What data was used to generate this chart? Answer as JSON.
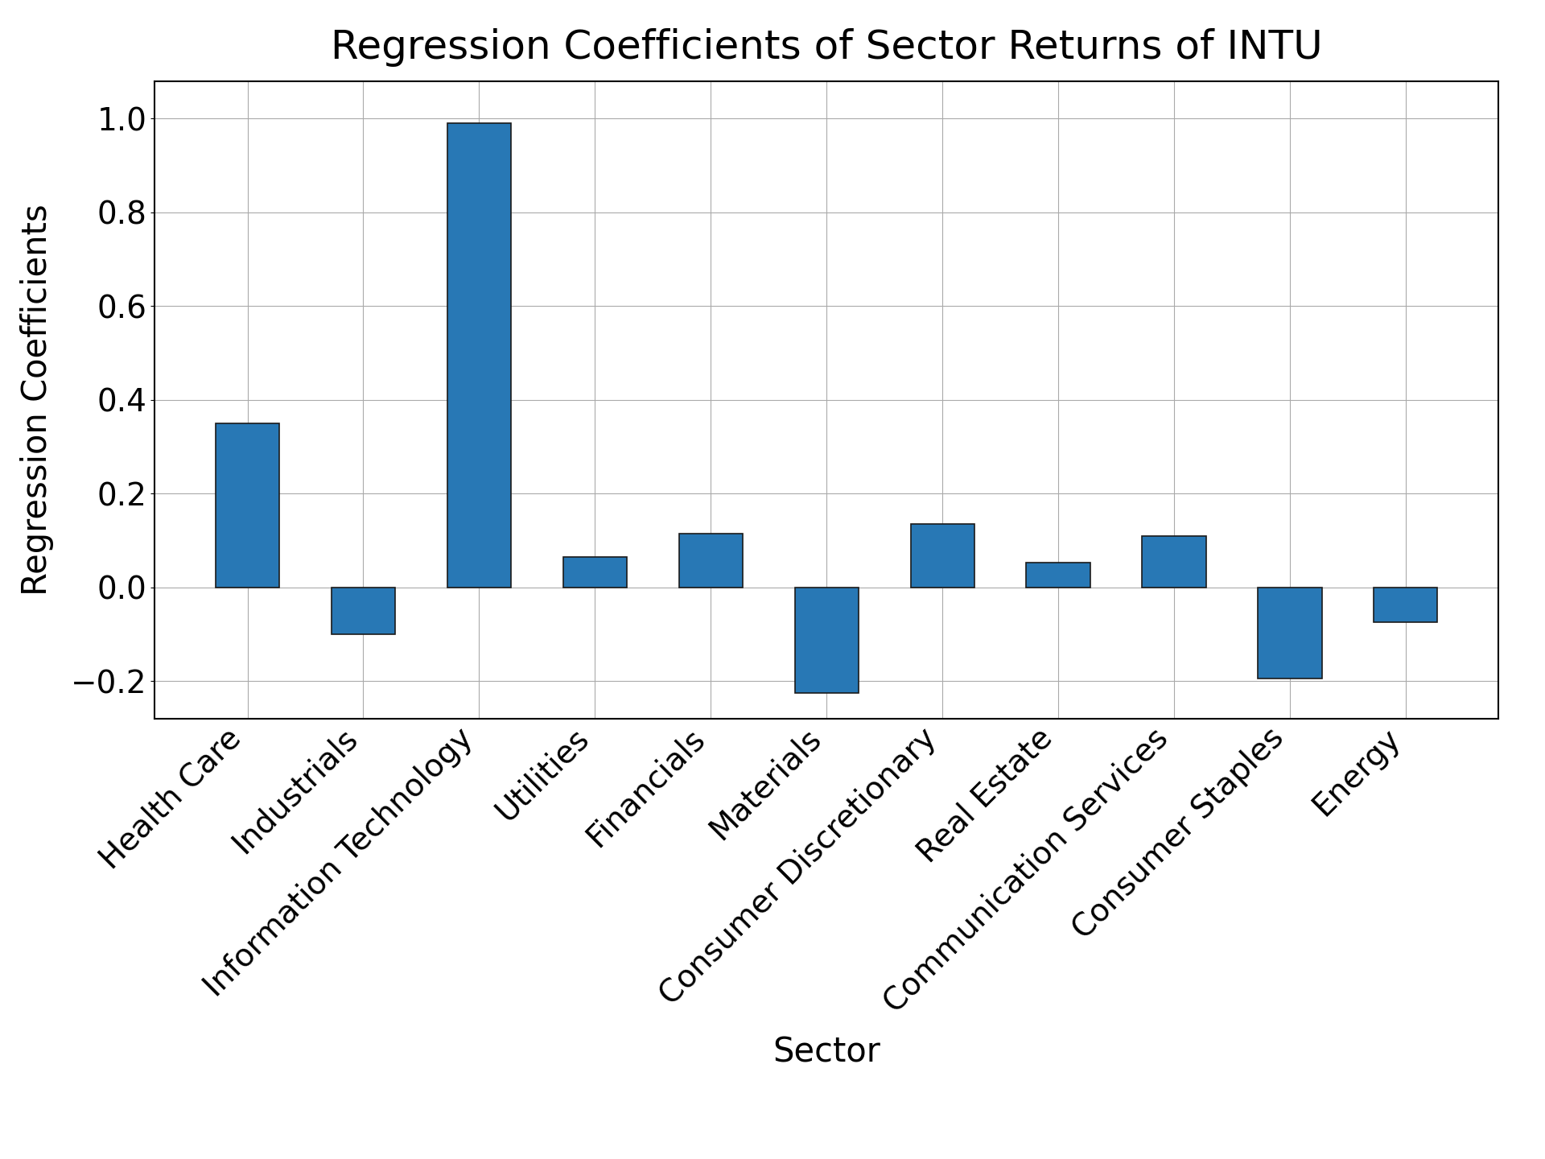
{
  "title": "Regression Coefficients of Sector Returns of INTU",
  "xlabel": "Sector",
  "ylabel": "Regression Coefficients",
  "categories": [
    "Health Care",
    "Industrials",
    "Information Technology",
    "Utilities",
    "Financials",
    "Materials",
    "Consumer Discretionary",
    "Real Estate",
    "Communication Services",
    "Consumer Staples",
    "Energy"
  ],
  "values": [
    0.35,
    -0.1,
    0.99,
    0.065,
    0.115,
    -0.225,
    0.135,
    0.052,
    0.11,
    -0.195,
    -0.075
  ],
  "bar_color": "#2878b5",
  "bar_edgecolor": "#1a1a1a",
  "ylim": [
    -0.28,
    1.08
  ],
  "yticks": [
    -0.2,
    0.0,
    0.2,
    0.4,
    0.6,
    0.8,
    1.0
  ],
  "title_fontsize": 36,
  "label_fontsize": 30,
  "tick_fontsize": 28,
  "background_color": "#ffffff",
  "grid_color": "#aaaaaa",
  "bar_width": 0.55
}
